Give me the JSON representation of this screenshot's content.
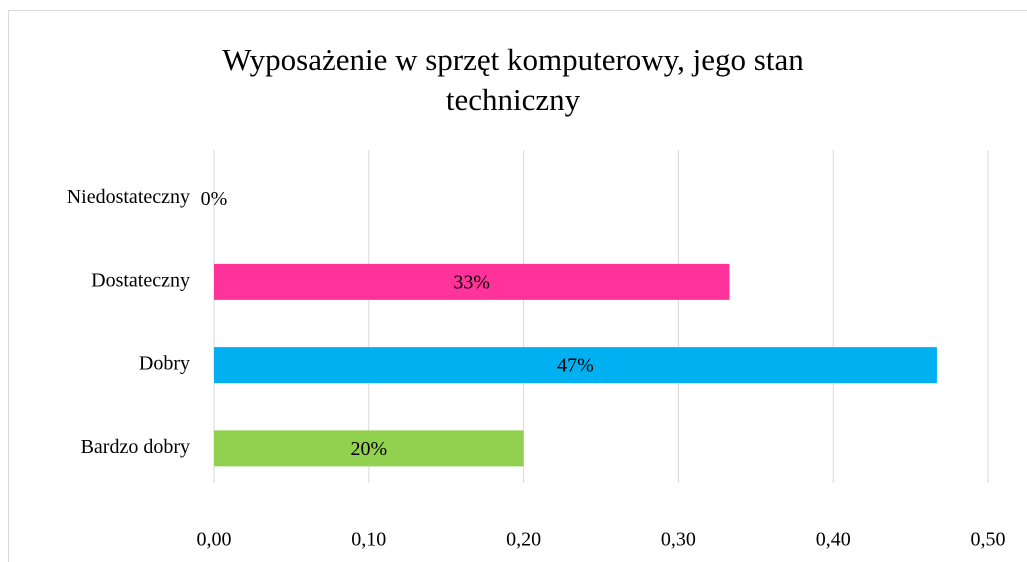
{
  "chart_data": {
    "type": "bar",
    "orientation": "horizontal",
    "title": "Wyposażenie w sprzęt komputerowy, jego stan techniczny",
    "categories": [
      "Niedostateczny",
      "Dostateczny",
      "Dobry",
      "Bardzo dobry"
    ],
    "values": [
      0,
      0.333,
      0.467,
      0.2
    ],
    "value_labels": [
      "0%",
      "33%",
      "47%",
      "20%"
    ],
    "colors": [
      "#ff3399",
      "#ff3399",
      "#00b0f0",
      "#92d050"
    ],
    "xlim": [
      0,
      0.5
    ],
    "xticks": [
      {
        "value": 0,
        "label": "0,00"
      },
      {
        "value": 0.1,
        "label": "0,10"
      },
      {
        "value": 0.2,
        "label": "0,20"
      },
      {
        "value": 0.3,
        "label": "0,30"
      },
      {
        "value": 0.4,
        "label": "0,40"
      },
      {
        "value": 0.5,
        "label": "0,50"
      }
    ],
    "grid": true
  }
}
